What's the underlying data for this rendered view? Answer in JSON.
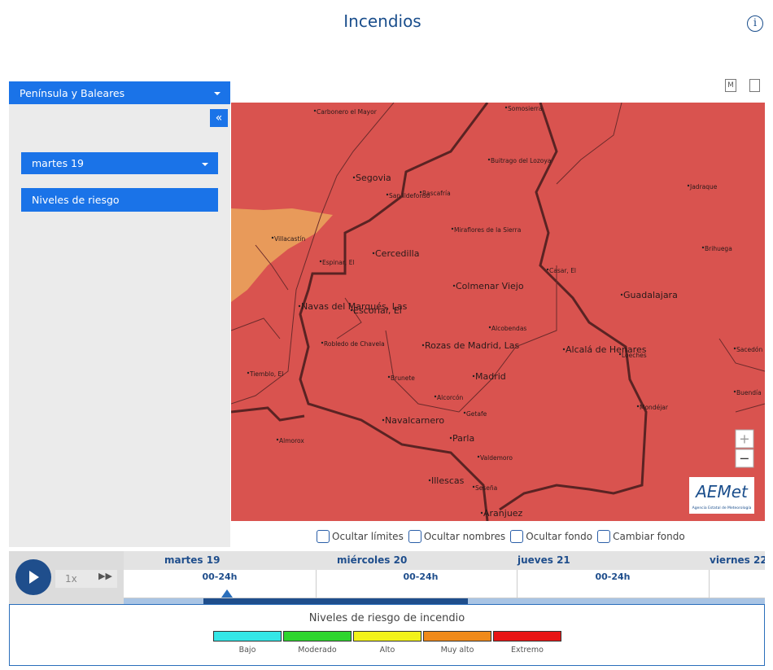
{
  "header": {
    "title": "Incendios",
    "info_icon": "i"
  },
  "sidebar": {
    "region": "Península y Baleares",
    "collapse": "«",
    "day": "martes 19",
    "layer": "Niveles de riesgo"
  },
  "map_tools": {
    "m": "M"
  },
  "map": {
    "places": [
      "Carbonero el Mayor",
      "Somosierra",
      "Buitrago del Lozoya",
      "Segovia",
      "San Ildefonso",
      "Rascafría",
      "Jadraque",
      "Miraflores de la Sierra",
      "Villacastín",
      "Brihuega",
      "Espinar, El",
      "Cercedilla",
      "Casar, El",
      "Colmenar Viejo",
      "Guadalajara",
      "Navas del Marqués, Las",
      "Escorial, El",
      "Alcobendas",
      "Robledo de Chavela",
      "Rozas de Madrid, Las",
      "Alcalá de Henares",
      "Loeches",
      "Sacedón",
      "Tiemblo, El",
      "Brunete",
      "Madrid",
      "Buendía",
      "Alcorcón",
      "Mondéjar",
      "Getafe",
      "Navalcarnero",
      "Almorox",
      "Parla",
      "Valdemoro",
      "Illescas",
      "Seseña",
      "Aranjuez"
    ],
    "zoom_in": "+",
    "zoom_out": "−",
    "logo": "AEMet",
    "logo_sub": "Agencia Estatal de Meteorología"
  },
  "options": [
    "Ocultar límites",
    "Ocultar nombres",
    "Ocultar fondo",
    "Cambiar fondo"
  ],
  "timeline": {
    "speed": "1x",
    "days": [
      "martes 19",
      "miércoles 20",
      "jueves 21",
      "viernes 22"
    ],
    "hours": [
      "00-24h",
      "00-24h",
      "00-24h"
    ]
  },
  "legend": {
    "title": "Niveles de riesgo de incendio",
    "levels": [
      {
        "label": "Bajo",
        "color": "#33e6e6"
      },
      {
        "label": "Moderado",
        "color": "#2ed52e"
      },
      {
        "label": "Alto",
        "color": "#f2f21a"
      },
      {
        "label": "Muy alto",
        "color": "#f08a1a"
      },
      {
        "label": "Extremo",
        "color": "#e81515"
      }
    ]
  }
}
